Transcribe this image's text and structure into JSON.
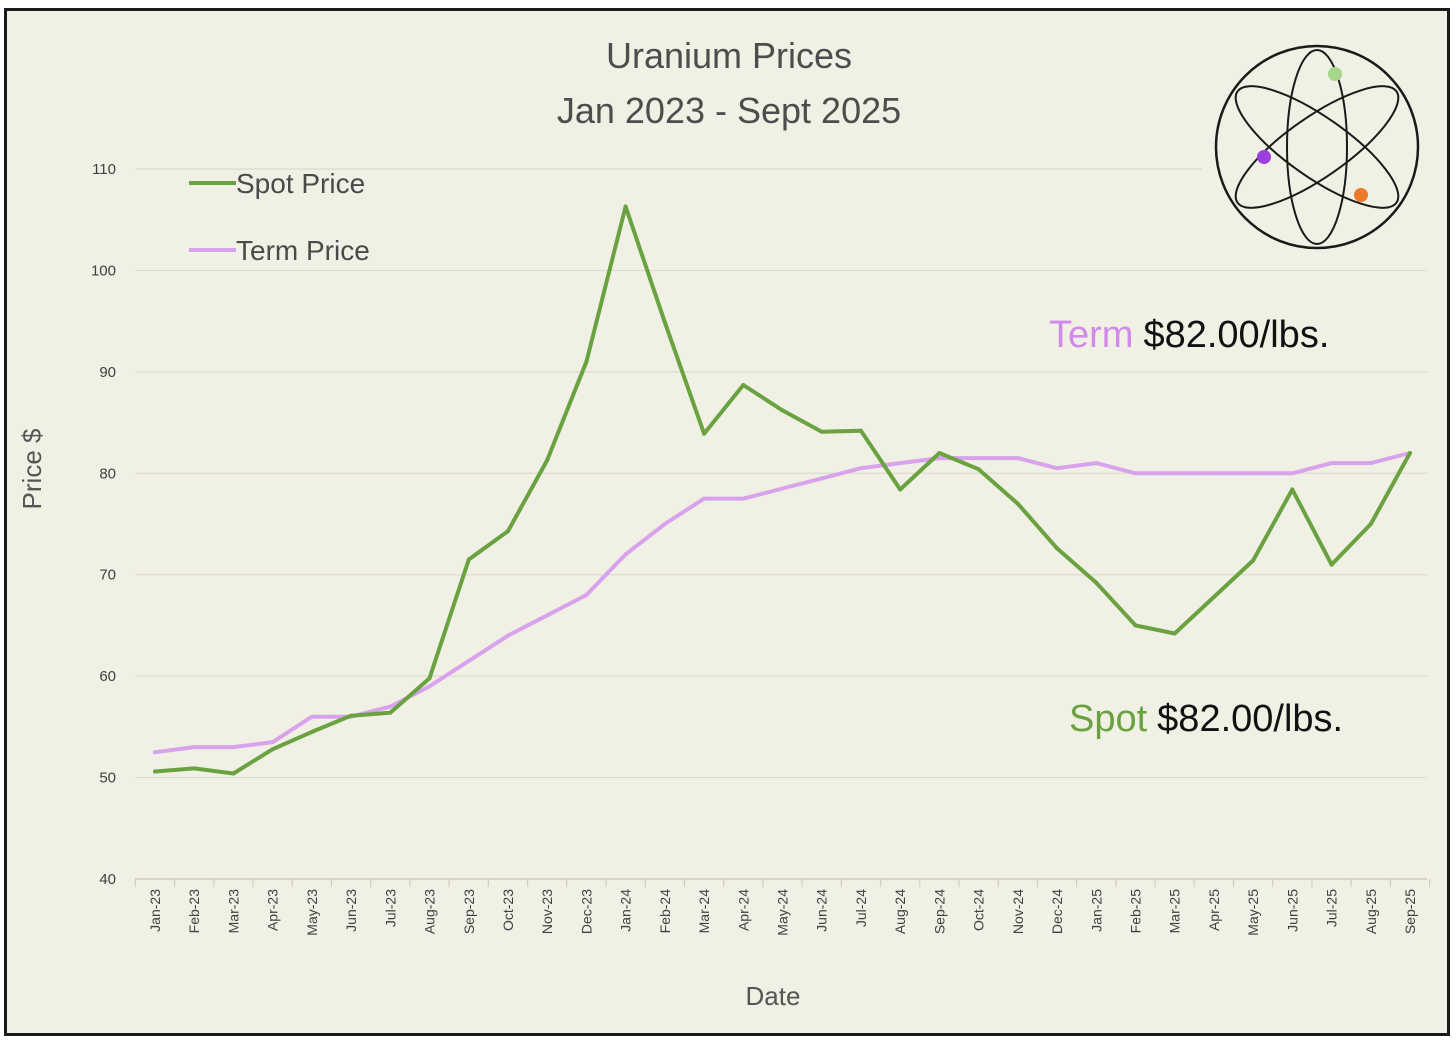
{
  "chart_data": {
    "type": "line",
    "title": "Uranium Prices",
    "subtitle": "Jan 2023 - Sept 2025",
    "xlabel": "Date",
    "ylabel": "Price $",
    "ylim": [
      40,
      110
    ],
    "yticks": [
      40,
      50,
      60,
      70,
      80,
      90,
      100,
      110
    ],
    "grid": true,
    "legend_position": "top-left",
    "categories": [
      "Jan-23",
      "Feb-23",
      "Mar-23",
      "Apr-23",
      "May-23",
      "Jun-23",
      "Jul-23",
      "Aug-23",
      "Sep-23",
      "Oct-23",
      "Nov-23",
      "Dec-23",
      "Jan-24",
      "Feb-24",
      "Mar-24",
      "Apr-24",
      "May-24",
      "Jun-24",
      "Jul-24",
      "Aug-24",
      "Sep-24",
      "Oct-24",
      "Nov-24",
      "Dec-24",
      "Jan-25",
      "Feb-25",
      "Mar-25",
      "Apr-25",
      "May-25",
      "Jun-25",
      "Jul-25",
      "Aug-25",
      "Sep-25"
    ],
    "series": [
      {
        "name": "Spot Price",
        "color": "#6aa242",
        "values": [
          50.6,
          50.9,
          50.4,
          52.8,
          54.5,
          56.1,
          56.4,
          59.8,
          71.5,
          74.3,
          81.3,
          91.0,
          106.3,
          94.9,
          83.9,
          88.7,
          86.2,
          84.1,
          84.2,
          78.4,
          82.0,
          80.4,
          77.0,
          72.6,
          69.2,
          65.0,
          64.2,
          67.8,
          71.4,
          78.4,
          71.0,
          75.0,
          82.0
        ]
      },
      {
        "name": "Term Price",
        "color": "#d8a3ec",
        "values": [
          52.5,
          53.0,
          53.0,
          53.5,
          56.0,
          56.0,
          57.0,
          59.0,
          61.5,
          64.0,
          66.0,
          68.0,
          72.0,
          75.0,
          77.5,
          77.5,
          78.5,
          79.5,
          80.5,
          81.0,
          81.5,
          81.5,
          81.5,
          80.5,
          81.0,
          80.0,
          80.0,
          80.0,
          80.0,
          80.0,
          81.0,
          81.0,
          82.0
        ]
      }
    ],
    "annotations": {
      "term": {
        "label": "Term",
        "value": "$82.00/lbs.",
        "color": "#d08be8"
      },
      "spot": {
        "label": "Spot",
        "value": "$82.00/lbs.",
        "color": "#6aa242"
      }
    }
  },
  "logo": {
    "icon": "atom-icon",
    "dot_colors": [
      "#a6d68a",
      "#9b3fe0",
      "#ec7a2a"
    ]
  }
}
